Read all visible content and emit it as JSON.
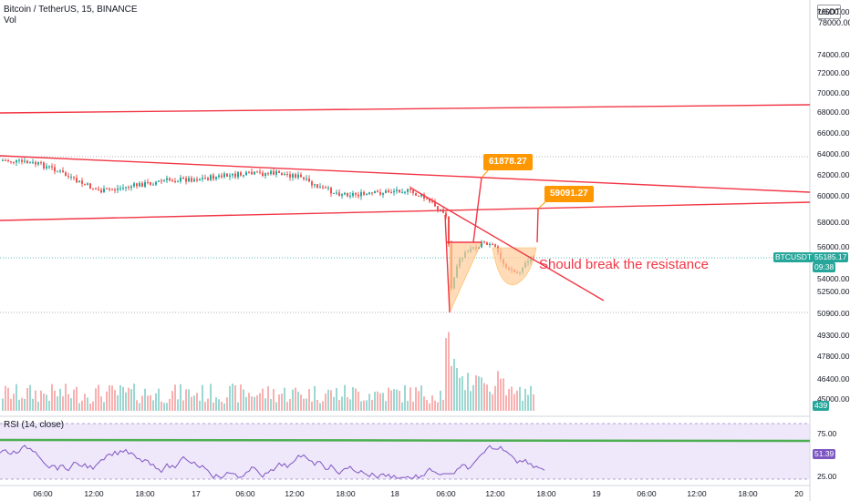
{
  "header": {
    "symbol_line": "Bitcoin / TetherUS, 15, BINANCE",
    "volume_label": "Vol",
    "currency_button": "USDT",
    "scale_top": "78000.00"
  },
  "price_axis": {
    "labels": [
      "76000.00",
      "74000.00",
      "72000.00",
      "70000.00",
      "68000.00",
      "66000.00",
      "64000.00",
      "62000.00",
      "60000.00",
      "58000.00",
      "56000.00",
      "54000.00",
      "52500.00",
      "50900.00",
      "49300.00",
      "47800.00",
      "46400.00",
      "45000.00"
    ]
  },
  "price_tags": {
    "symbol": "BTCUSDT",
    "last_price": "55185.17",
    "countdown": "09:38",
    "volume": "439"
  },
  "rsi": {
    "label": "RSI (14, close)",
    "upper": "75.00",
    "lower": "25.00",
    "value": "51.39"
  },
  "time_axis": {
    "labels": [
      "06:00",
      "12:00",
      "18:00",
      "17",
      "06:00",
      "12:00",
      "18:00",
      "18",
      "06:00",
      "12:00",
      "18:00",
      "19",
      "06:00",
      "12:00",
      "18:00",
      "20"
    ]
  },
  "drawings": {
    "callout_1": "61878.27",
    "callout_2": "59091.27",
    "annotation": "Should break the resistance"
  },
  "colors": {
    "trendline": "#f23645",
    "bull": "#26a69a",
    "bear": "#ef5350",
    "callout": "#ff9800",
    "pattern_fill": "#ffcc99",
    "rsi_line": "#7e57c2",
    "rsi_band": "#e1d4f5",
    "rsi_ma": "#4caf50"
  }
}
